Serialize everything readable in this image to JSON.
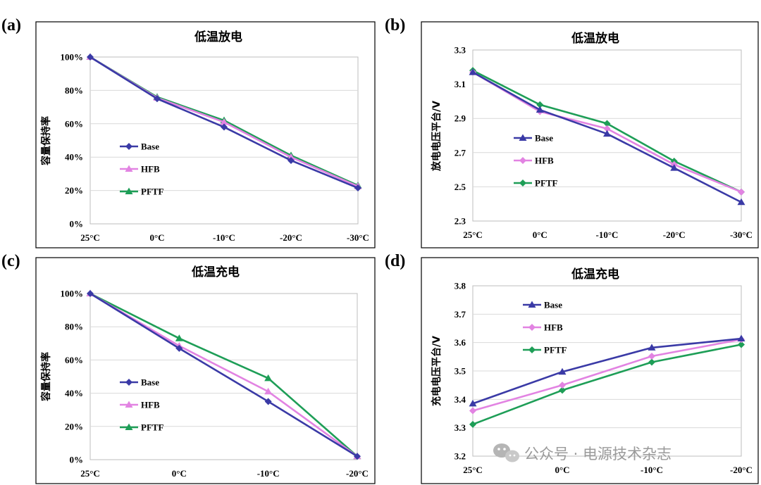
{
  "colors": {
    "Base": "#3a3aa6",
    "HFB": "#e283e2",
    "PFTF": "#1e9e57"
  },
  "watermark": {
    "text": "公众号 · 电源技术杂志",
    "icon": "wechat-icon"
  },
  "chart_data": [
    {
      "id": "a",
      "panel_label": "(a)",
      "type": "line",
      "title": "低温放电",
      "ylabel": "容量保持率",
      "xlabel": "",
      "categories": [
        "25°C",
        "0°C",
        "-10°C",
        "-20°C",
        "-30°C"
      ],
      "ylim": [
        0,
        1
      ],
      "yticks": [
        0,
        0.2,
        0.4,
        0.6,
        0.8,
        1.0
      ],
      "ytick_labels": [
        "0%",
        "20%",
        "40%",
        "60%",
        "80%",
        "100%"
      ],
      "grid": true,
      "legend_position": "left",
      "series": [
        {
          "name": "Base",
          "marker": "diamond",
          "values": [
            1.0,
            0.75,
            0.58,
            0.38,
            0.215
          ]
        },
        {
          "name": "HFB",
          "marker": "triangle",
          "values": [
            1.0,
            0.755,
            0.61,
            0.4,
            0.225
          ]
        },
        {
          "name": "PFTF",
          "marker": "triangle",
          "values": [
            1.0,
            0.76,
            0.62,
            0.41,
            0.23
          ]
        }
      ]
    },
    {
      "id": "b",
      "panel_label": "(b)",
      "type": "line",
      "title": "低温放电",
      "ylabel": "放电电压平台/V",
      "xlabel": "",
      "categories": [
        "25°C",
        "0°C",
        "-10°C",
        "-20°C",
        "-30°C"
      ],
      "ylim": [
        2.3,
        3.3
      ],
      "yticks": [
        2.3,
        2.5,
        2.7,
        2.9,
        3.1,
        3.3
      ],
      "ytick_labels": [
        "2.3",
        "2.5",
        "2.7",
        "2.9",
        "3.1",
        "3.3"
      ],
      "grid": true,
      "legend_position": "left",
      "series": [
        {
          "name": "Base",
          "marker": "triangle",
          "values": [
            3.17,
            2.95,
            2.81,
            2.61,
            2.41
          ]
        },
        {
          "name": "HFB",
          "marker": "diamond",
          "values": [
            3.17,
            2.94,
            2.84,
            2.63,
            2.47
          ]
        },
        {
          "name": "PFTF",
          "marker": "diamond",
          "values": [
            3.18,
            2.98,
            2.87,
            2.65,
            2.47
          ]
        }
      ]
    },
    {
      "id": "c",
      "panel_label": "(c)",
      "type": "line",
      "title": "低温充电",
      "ylabel": "容量保持率",
      "xlabel": "",
      "categories": [
        "25°C",
        "0°C",
        "-10°C",
        "-20°C"
      ],
      "ylim": [
        0,
        1
      ],
      "yticks": [
        0,
        0.2,
        0.4,
        0.6,
        0.8,
        1.0
      ],
      "ytick_labels": [
        "0%",
        "20%",
        "40%",
        "60%",
        "80%",
        "100%"
      ],
      "grid": true,
      "legend_position": "left",
      "series": [
        {
          "name": "Base",
          "marker": "diamond",
          "values": [
            1.0,
            0.67,
            0.35,
            0.02
          ]
        },
        {
          "name": "HFB",
          "marker": "triangle",
          "values": [
            1.0,
            0.685,
            0.41,
            0.02
          ]
        },
        {
          "name": "PFTF",
          "marker": "triangle",
          "values": [
            1.0,
            0.73,
            0.49,
            0.02
          ]
        }
      ]
    },
    {
      "id": "d",
      "panel_label": "(d)",
      "type": "line",
      "title": "低温充电",
      "ylabel": "充电电压平台/V",
      "xlabel": "",
      "categories": [
        "25°C",
        "0°C",
        "-10°C",
        "-20°C"
      ],
      "ylim": [
        3.2,
        3.8
      ],
      "yticks": [
        3.2,
        3.3,
        3.4,
        3.5,
        3.6,
        3.7,
        3.8
      ],
      "ytick_labels": [
        "3.2",
        "3.3",
        "3.4",
        "3.5",
        "3.6",
        "3.7",
        "3.8"
      ],
      "grid": true,
      "legend_position": "top-left",
      "series": [
        {
          "name": "Base",
          "marker": "triangle",
          "values": [
            3.385,
            3.497,
            3.582,
            3.614
          ]
        },
        {
          "name": "HFB",
          "marker": "diamond",
          "values": [
            3.36,
            3.45,
            3.552,
            3.611
          ]
        },
        {
          "name": "PFTF",
          "marker": "diamond",
          "values": [
            3.312,
            3.432,
            3.531,
            3.593
          ]
        }
      ]
    }
  ]
}
